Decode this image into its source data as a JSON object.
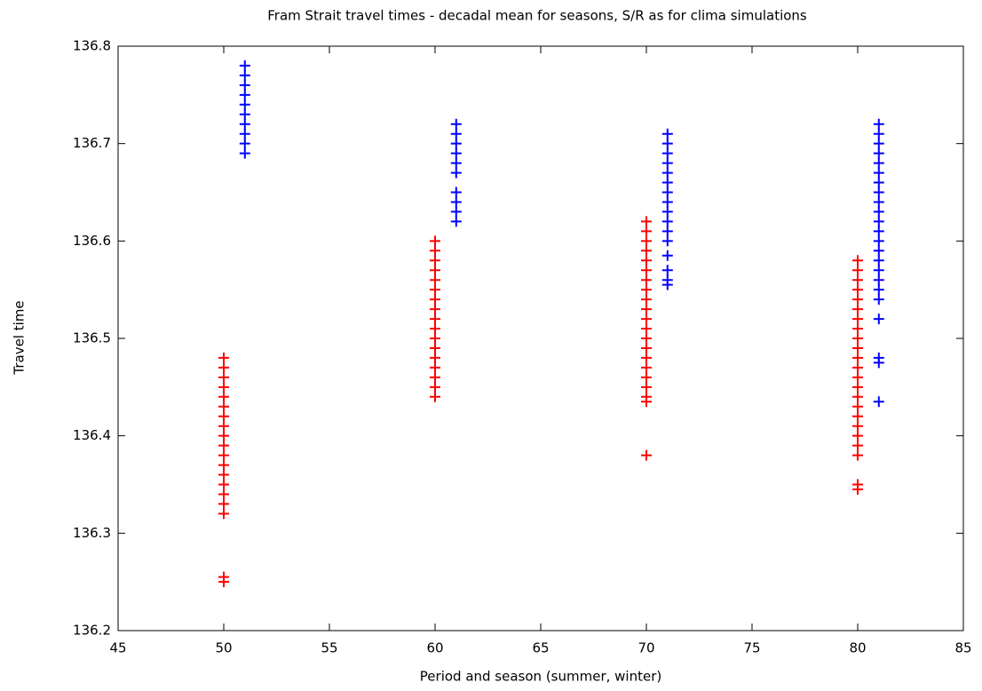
{
  "chart_data": {
    "type": "scatter",
    "title": "Fram Strait travel times - decadal mean for seasons, S/R as for clima simulations",
    "xlabel": "Period and season (summer, winter)",
    "ylabel": "Travel time",
    "xlim": [
      45,
      85
    ],
    "xticks": [
      45,
      50,
      55,
      60,
      65,
      70,
      75,
      80,
      85
    ],
    "ylim": [
      136.2,
      136.8
    ],
    "yticks": [
      136.2,
      136.3,
      136.4,
      136.5,
      136.6,
      136.7,
      136.8
    ],
    "grid": false,
    "marker": "+",
    "series": [
      {
        "color": "#ff0000",
        "x": [
          50,
          50,
          50,
          50,
          50,
          50,
          50,
          50,
          50,
          50,
          50,
          50,
          50,
          50,
          50,
          50,
          50,
          50,
          50,
          60,
          60,
          60,
          60,
          60,
          60,
          60,
          60,
          60,
          60,
          60,
          60,
          60,
          60,
          60,
          60,
          60,
          70,
          70,
          70,
          70,
          70,
          70,
          70,
          70,
          70,
          70,
          70,
          70,
          70,
          70,
          70,
          70,
          70,
          70,
          70,
          70,
          70,
          80,
          80,
          80,
          80,
          80,
          80,
          80,
          80,
          80,
          80,
          80,
          80,
          80,
          80,
          80,
          80,
          80,
          80,
          80,
          80,
          80,
          80,
          80
        ],
        "values": [
          136.25,
          136.255,
          136.32,
          136.33,
          136.34,
          136.35,
          136.36,
          136.37,
          136.38,
          136.39,
          136.4,
          136.41,
          136.42,
          136.43,
          136.44,
          136.45,
          136.46,
          136.47,
          136.48,
          136.44,
          136.45,
          136.46,
          136.47,
          136.48,
          136.49,
          136.5,
          136.51,
          136.52,
          136.53,
          136.54,
          136.55,
          136.56,
          136.57,
          136.58,
          136.59,
          136.6,
          136.38,
          136.435,
          136.44,
          136.45,
          136.46,
          136.47,
          136.48,
          136.49,
          136.5,
          136.51,
          136.52,
          136.53,
          136.54,
          136.55,
          136.56,
          136.57,
          136.58,
          136.59,
          136.6,
          136.61,
          136.62,
          136.345,
          136.35,
          136.38,
          136.39,
          136.4,
          136.41,
          136.42,
          136.43,
          136.44,
          136.45,
          136.46,
          136.47,
          136.48,
          136.49,
          136.5,
          136.51,
          136.52,
          136.53,
          136.54,
          136.55,
          136.56,
          136.57,
          136.58
        ]
      },
      {
        "color": "#0000ff",
        "x": [
          51,
          51,
          51,
          51,
          51,
          51,
          51,
          51,
          51,
          51,
          61,
          61,
          61,
          61,
          61,
          61,
          61,
          61,
          61,
          61,
          71,
          71,
          71,
          71,
          71,
          71,
          71,
          71,
          71,
          71,
          71,
          71,
          71,
          71,
          71,
          71,
          81,
          81,
          81,
          81,
          81,
          81,
          81,
          81,
          81,
          81,
          81,
          81,
          81,
          81,
          81,
          81,
          81,
          81,
          81,
          81,
          81,
          81,
          81
        ],
        "values": [
          136.69,
          136.7,
          136.71,
          136.72,
          136.73,
          136.74,
          136.75,
          136.76,
          136.77,
          136.78,
          136.62,
          136.63,
          136.64,
          136.65,
          136.67,
          136.68,
          136.69,
          136.7,
          136.71,
          136.72,
          136.555,
          136.56,
          136.57,
          136.585,
          136.6,
          136.61,
          136.62,
          136.63,
          136.64,
          136.65,
          136.66,
          136.67,
          136.68,
          136.69,
          136.7,
          136.71,
          136.435,
          136.475,
          136.48,
          136.52,
          136.54,
          136.55,
          136.56,
          136.57,
          136.58,
          136.59,
          136.6,
          136.61,
          136.62,
          136.63,
          136.64,
          136.65,
          136.66,
          136.67,
          136.68,
          136.69,
          136.7,
          136.71,
          136.72
        ]
      }
    ]
  }
}
